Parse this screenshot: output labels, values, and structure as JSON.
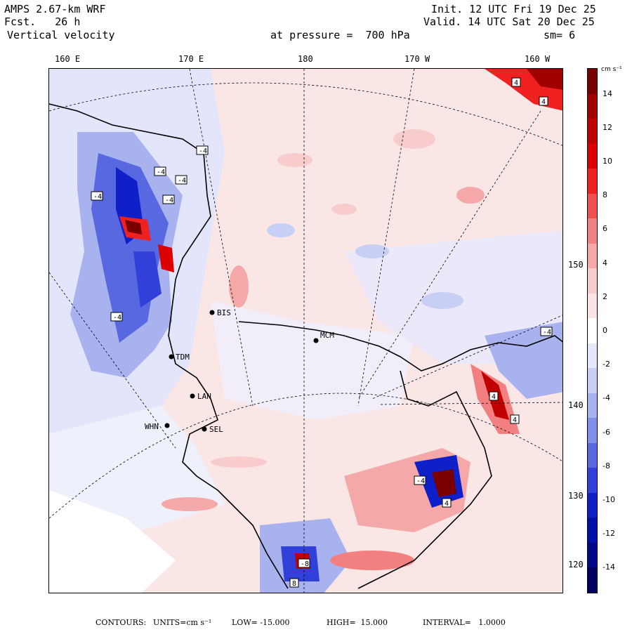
{
  "header": {
    "model": "AMPS 2.67-km WRF",
    "fcst_label": "Fcst.",
    "fcst_value": "26 h",
    "field": "Vertical velocity",
    "init": "Init. 12 UTC Fri 19 Dec 25",
    "valid": "Valid. 14 UTC Sat 20 Dec 25",
    "pressure": "at pressure =  700 hPa",
    "smoothing": "sm= 6"
  },
  "longitude_labels": [
    "160 E",
    "170 E",
    "180",
    "170 W",
    "160 W"
  ],
  "latitude_labels": [
    "150 W",
    "140 W",
    "130 W",
    "120 W"
  ],
  "stations": [
    "BIS",
    "TDM",
    "LAN",
    "WHN",
    "SEL",
    "MCM"
  ],
  "contour_marks": [
    "-4",
    "-4",
    "-4",
    "-4",
    "-4",
    "-4",
    "-4",
    "4",
    "4",
    "4",
    "4",
    "-4",
    "4",
    "-8",
    "8"
  ],
  "colorbar": {
    "unit": "cm s⁻¹",
    "ticks": [
      "14",
      "12",
      "10",
      "8",
      "6",
      "4",
      "2",
      "0",
      "-2",
      "-4",
      "-6",
      "-8",
      "-10",
      "-12",
      "-14"
    ],
    "colors": [
      "#7a0000",
      "#a00000",
      "#c00000",
      "#dd0000",
      "#ee2020",
      "#f05050",
      "#f28080",
      "#f5a8a8",
      "#f8cccc",
      "#fbe4e4",
      "#ffffff",
      "#e4e8fb",
      "#c8cff5",
      "#a8b2ef",
      "#8090e8",
      "#5868e0",
      "#3040d8",
      "#1020c8",
      "#0010a8",
      "#000888",
      "#000060"
    ]
  },
  "footer": {
    "contours": "CONTOURS:",
    "units_label": "UNITS=cm s⁻¹",
    "low": "LOW= -15.000",
    "high": "HIGH=  15.000",
    "interval": "INTERVAL=   1.0000"
  }
}
